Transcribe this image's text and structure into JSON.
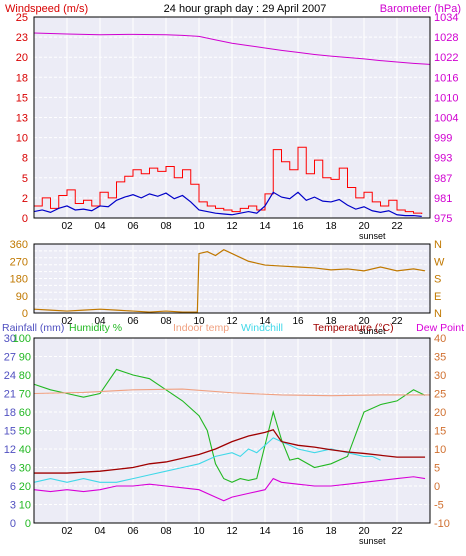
{
  "colors": {
    "bg": "#ffffff",
    "plot": "#ececf6",
    "grid": "#ffffff",
    "axis": "#000000",
    "title": "#000000",
    "wind_label": "#d80000",
    "wind_gust": "#ff0000",
    "wind_avg": "#0000c8",
    "baro": "#d000d0",
    "dir": "#c07800",
    "rain": "#6f6fd8",
    "humidity": "#22b822",
    "indoor": "#f0a080",
    "windchill": "#40d8e8",
    "temperature": "#a00000",
    "dew": "#d800d8",
    "temp_axis": "#d07030",
    "rain_axis": "#5050c0"
  },
  "chart_data": [
    {
      "type": "line",
      "title": "24 hour graph day : 29 April 2007",
      "ylabel_left": "Windspeed (m/s)",
      "ylabel_right": "Barometer (hPa)",
      "x_ticks": [
        "02",
        "04",
        "06",
        "08",
        "10",
        "12",
        "14",
        "16",
        "18",
        "20",
        "22"
      ],
      "x_annotation": "sunset",
      "sunset_hour": 20.5,
      "ylim_left": [
        0,
        25
      ],
      "y_ticks_left": [
        "0",
        "2",
        "5",
        "8",
        "10",
        "13",
        "15",
        "18",
        "20",
        "23",
        "25"
      ],
      "ylim_right": [
        975,
        1034
      ],
      "y_ticks_right": [
        "975",
        "981",
        "987",
        "993",
        "999",
        "1004",
        "1010",
        "1016",
        "1022",
        "1028",
        "1034"
      ],
      "grid": true,
      "series": [
        {
          "key": "gust",
          "x": [
            0,
            0.5,
            1,
            1.5,
            2,
            2.5,
            3,
            3.5,
            4,
            4.5,
            5,
            5.5,
            6,
            6.5,
            7,
            7.5,
            8,
            8.5,
            9,
            9.5,
            10,
            10.5,
            11,
            11.5,
            12,
            12.5,
            13,
            13.5,
            14,
            14.5,
            15,
            15.5,
            16,
            16.5,
            17,
            17.5,
            18,
            18.5,
            19,
            19.5,
            20,
            20.5,
            21,
            21.5,
            22,
            22.5,
            23,
            23.5
          ],
          "values": [
            1.5,
            2.5,
            1.2,
            2.8,
            3.5,
            1.8,
            2.2,
            1.5,
            3.2,
            2.5,
            4.5,
            5.2,
            6.0,
            5.5,
            6.2,
            5.8,
            6.4,
            5.0,
            6.0,
            4.2,
            2.0,
            1.5,
            1.2,
            1.0,
            0.8,
            1.2,
            1.5,
            1.0,
            3.0,
            8.5,
            7.0,
            6.0,
            8.8,
            5.5,
            7.2,
            5.0,
            4.8,
            6.2,
            3.8,
            2.5,
            3.2,
            2.0,
            1.5,
            2.2,
            1.0,
            0.8,
            0.6,
            0.5
          ]
        },
        {
          "key": "avg",
          "x": [
            0,
            0.5,
            1,
            1.5,
            2,
            2.5,
            3,
            3.5,
            4,
            4.5,
            5,
            5.5,
            6,
            6.5,
            7,
            7.5,
            8,
            8.5,
            9,
            9.5,
            10,
            10.5,
            11,
            11.5,
            12,
            12.5,
            13,
            13.5,
            14,
            14.5,
            15,
            15.5,
            16,
            16.5,
            17,
            17.5,
            18,
            18.5,
            19,
            19.5,
            20,
            20.5,
            21,
            21.5,
            22,
            22.5,
            23,
            23.5
          ],
          "values": [
            0.8,
            1.0,
            0.7,
            1.2,
            1.5,
            1.0,
            1.1,
            0.9,
            1.5,
            1.4,
            2.2,
            2.6,
            2.9,
            2.5,
            3.0,
            2.7,
            3.1,
            2.4,
            2.8,
            2.0,
            1.0,
            0.8,
            0.6,
            0.5,
            0.4,
            0.6,
            0.8,
            0.6,
            1.5,
            3.2,
            2.6,
            2.4,
            3.2,
            2.2,
            2.6,
            2.1,
            2.0,
            2.3,
            1.6,
            1.1,
            1.4,
            0.9,
            0.7,
            0.9,
            0.4,
            0.3,
            0.3,
            0.2
          ]
        },
        {
          "key": "baro",
          "axis": "right",
          "x": [
            0,
            2,
            4,
            6,
            8,
            9,
            10,
            11,
            12,
            13,
            14,
            15,
            16,
            17,
            18,
            19,
            20,
            21,
            22,
            23,
            24
          ],
          "values": [
            1029.3,
            1029.0,
            1028.8,
            1028.9,
            1028.8,
            1028.6,
            1028.3,
            1027.3,
            1026.3,
            1025.6,
            1024.9,
            1024.2,
            1023.6,
            1023.0,
            1022.5,
            1022.1,
            1021.7,
            1021.2,
            1020.8,
            1020.4,
            1020.1
          ]
        }
      ]
    },
    {
      "type": "line",
      "x_ticks": [
        "02",
        "04",
        "06",
        "08",
        "10",
        "12",
        "14",
        "16",
        "18",
        "20",
        "22"
      ],
      "x_annotation": "sunset",
      "sunset_hour": 20.5,
      "ylim_left": [
        0,
        360
      ],
      "y_ticks_left": [
        "0",
        "90",
        "180",
        "270",
        "360"
      ],
      "y_ticks_right": [
        "N",
        "E",
        "S",
        "W",
        "N"
      ],
      "grid": true,
      "series": [
        {
          "key": "dir",
          "x": [
            0,
            1,
            2,
            3,
            4,
            5,
            6,
            7,
            8,
            9,
            9.9,
            10,
            10.5,
            11,
            11.5,
            12,
            12.5,
            13,
            13.5,
            14,
            15,
            16,
            17,
            18,
            19,
            20,
            21,
            22,
            23,
            23.7
          ],
          "values": [
            20,
            15,
            10,
            15,
            20,
            15,
            10,
            5,
            10,
            5,
            5,
            310,
            320,
            300,
            330,
            310,
            290,
            270,
            260,
            250,
            245,
            240,
            235,
            225,
            230,
            220,
            240,
            220,
            230,
            220
          ]
        }
      ]
    },
    {
      "type": "line",
      "legend": [
        "Rainfall (mm)",
        "Humidity %",
        "Indoor temp",
        "Windchill",
        "Temperature (°C)",
        "Dew Point"
      ],
      "x_ticks": [
        "02",
        "04",
        "06",
        "08",
        "10",
        "12",
        "14",
        "16",
        "18",
        "20",
        "22"
      ],
      "x_annotation": "sunset",
      "sunset_hour": 20.5,
      "y_ticks_rain": [
        "0",
        "3",
        "6",
        "9",
        "12",
        "15",
        "18",
        "21",
        "24",
        "27",
        "30"
      ],
      "y_ticks_humidity": [
        "0",
        "10",
        "20",
        "30",
        "40",
        "50",
        "60",
        "70",
        "80",
        "90",
        "100"
      ],
      "ylim_temp": [
        -10,
        40
      ],
      "y_ticks_temp": [
        "-10",
        "-5",
        "0",
        "5",
        "10",
        "15",
        "20",
        "25",
        "30",
        "35",
        "40"
      ],
      "grid": true,
      "series": [
        {
          "key": "humidity",
          "axis": "humidity",
          "x": [
            0,
            1,
            2,
            3,
            4,
            5,
            6,
            7,
            8,
            9,
            10,
            10.5,
            11,
            11.5,
            12,
            12.5,
            13,
            13.5,
            14,
            14.5,
            15,
            15.5,
            16,
            17,
            18,
            19,
            20,
            21,
            22,
            23,
            23.7
          ],
          "values": [
            75,
            72,
            70,
            68,
            70,
            83,
            80,
            78,
            72,
            66,
            58,
            50,
            32,
            24,
            22,
            24,
            23,
            24,
            42,
            60,
            45,
            34,
            35,
            30,
            32,
            36,
            60,
            64,
            66,
            72,
            69
          ]
        },
        {
          "key": "indoor",
          "axis": "temp",
          "x": [
            0,
            3,
            6,
            9,
            12,
            15,
            18,
            21,
            24
          ],
          "values": [
            25,
            25.3,
            26,
            26.2,
            25.2,
            24.6,
            24.4,
            24.6,
            24.6
          ]
        },
        {
          "key": "windchill",
          "axis": "temp",
          "x": [
            0,
            1,
            2,
            3,
            4,
            5,
            6,
            7,
            8,
            9,
            10,
            11,
            12,
            12.5,
            13,
            13.5,
            14,
            14.5,
            15,
            15.5,
            16,
            17,
            18,
            19,
            20,
            20.5,
            21
          ],
          "values": [
            1,
            2,
            1,
            2,
            1,
            1,
            2,
            3,
            4,
            5,
            6,
            8,
            9,
            8,
            10,
            9,
            11,
            13,
            12,
            11,
            10,
            9,
            10,
            9,
            8,
            8,
            7
          ]
        },
        {
          "key": "temperature",
          "axis": "temp",
          "x": [
            0,
            2,
            4,
            5,
            6,
            7,
            8,
            9,
            10,
            11,
            12,
            13,
            14,
            14.5,
            15,
            16,
            17,
            18,
            19,
            20,
            21,
            22,
            23,
            23.7
          ],
          "values": [
            3.5,
            3.5,
            4,
            4.5,
            5,
            6,
            6.5,
            7.5,
            8.5,
            10,
            12,
            13.5,
            14.5,
            15.2,
            12,
            11,
            10.5,
            9.8,
            9.2,
            8.8,
            8.3,
            7.8,
            7.8,
            7.8
          ]
        },
        {
          "key": "dew",
          "axis": "temp",
          "x": [
            0,
            1,
            2,
            3,
            4,
            5,
            6,
            7,
            8,
            9,
            10,
            11,
            11.5,
            12,
            13,
            14,
            14.5,
            15,
            16,
            17,
            18,
            19,
            20,
            21,
            22,
            23,
            23.7
          ],
          "values": [
            -1,
            -1.5,
            -1,
            -1.5,
            -1,
            0,
            0,
            0.5,
            0,
            -0.5,
            -1,
            -3,
            -4,
            -3,
            -2,
            -1,
            2,
            1,
            0.5,
            0,
            0,
            0.5,
            1,
            1.5,
            2,
            2.5,
            2
          ]
        },
        {
          "key": "rain",
          "axis": "rain",
          "x": [
            0,
            24
          ],
          "values": [
            0,
            0
          ]
        }
      ]
    }
  ]
}
